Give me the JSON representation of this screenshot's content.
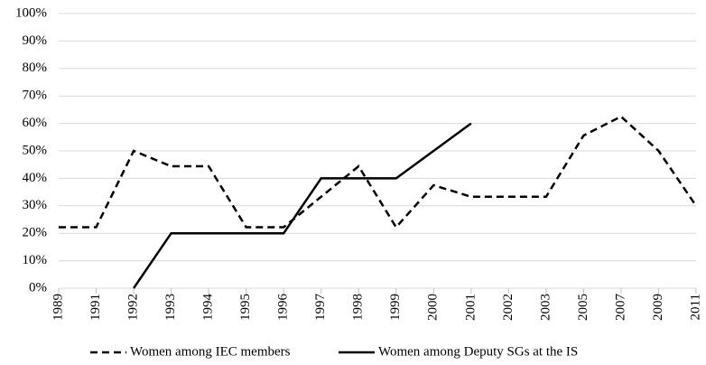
{
  "chart_data": {
    "type": "line",
    "categories": [
      "1989",
      "1991",
      "1992",
      "1993",
      "1994",
      "1995",
      "1996",
      "1997",
      "1998",
      "1999",
      "2000",
      "2001",
      "2002",
      "2003",
      "2005",
      "2007",
      "2009",
      "2011"
    ],
    "series": [
      {
        "name": "Women among IEC members",
        "color": "#000000",
        "dash": true,
        "values": [
          22.2,
          22.2,
          50,
          44.4,
          44.4,
          22.2,
          22.2,
          33.3,
          44.4,
          22.2,
          37.5,
          33.3,
          33.3,
          33.3,
          55.6,
          62.5,
          50,
          30
        ]
      },
      {
        "name": "Women among Deputy SGs at the IS",
        "color": "#000000",
        "dash": false,
        "values": [
          null,
          null,
          0,
          20,
          20,
          20,
          20,
          40,
          40,
          40,
          50,
          60,
          null,
          null,
          null,
          null,
          null,
          null
        ]
      }
    ],
    "ylim": [
      0,
      100
    ],
    "yticks": [
      {
        "value": 0,
        "label": "0%"
      },
      {
        "value": 10,
        "label": "10%"
      },
      {
        "value": 20,
        "label": "20%"
      },
      {
        "value": 30,
        "label": "30%"
      },
      {
        "value": 40,
        "label": "40%"
      },
      {
        "value": 50,
        "label": "50%"
      },
      {
        "value": 60,
        "label": "60%"
      },
      {
        "value": 70,
        "label": "70%"
      },
      {
        "value": 80,
        "label": "80%"
      },
      {
        "value": 90,
        "label": "90%"
      },
      {
        "value": 100,
        "label": "100%"
      }
    ],
    "grid": true,
    "legend": "bottom"
  }
}
